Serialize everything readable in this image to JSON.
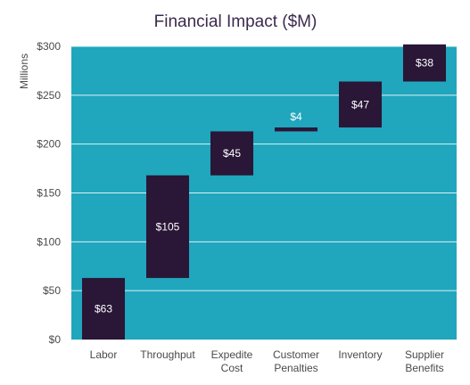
{
  "chart_data": {
    "type": "waterfall",
    "title": "Financial Impact ($M)",
    "ylabel": "Millions",
    "ylim": [
      0,
      300
    ],
    "yticks": [
      0,
      50,
      100,
      150,
      200,
      250,
      300
    ],
    "ytick_labels": [
      "$0",
      "$50",
      "$100",
      "$150",
      "$200",
      "$250",
      "$300"
    ],
    "grid": true,
    "categories": [
      [
        "Labor"
      ],
      [
        "Throughput"
      ],
      [
        "Expedite",
        "Cost"
      ],
      [
        "Customer",
        "Penalties"
      ],
      [
        "Inventory"
      ],
      [
        "Supplier",
        "Benefits"
      ]
    ],
    "values": [
      63,
      105,
      45,
      4,
      47,
      38
    ],
    "value_labels": [
      "$63",
      "$105",
      "$45",
      "$4",
      "$47",
      "$38"
    ],
    "colors": {
      "plot_background": "#20a6bd",
      "bar": "#2a1637",
      "gridline": "#ffffff",
      "label_on_bar": "#ffffff"
    }
  }
}
